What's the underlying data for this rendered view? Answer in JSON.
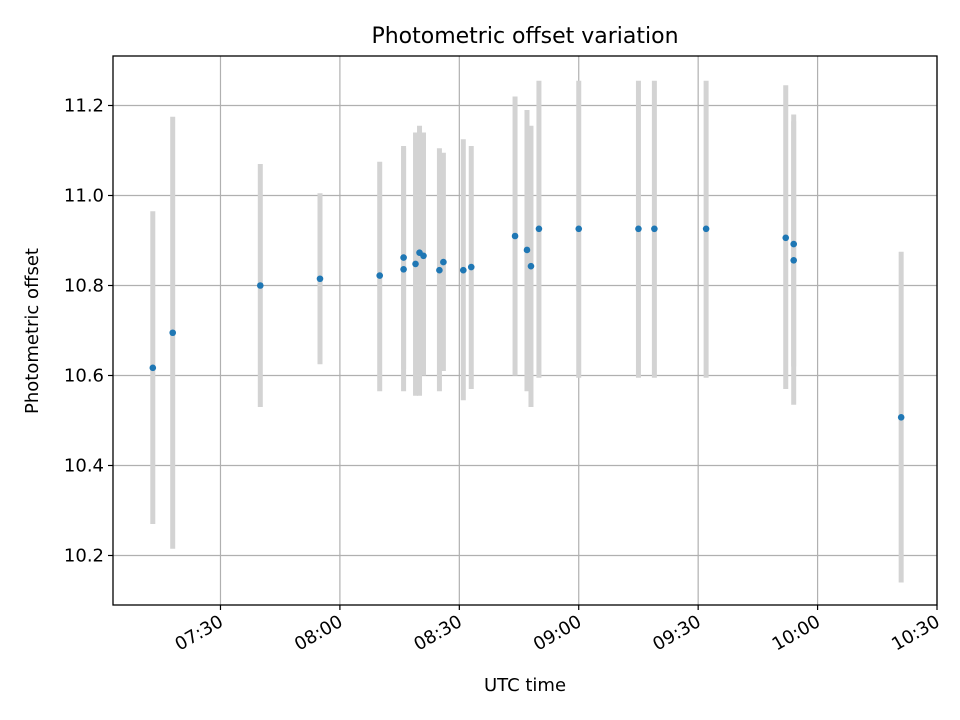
{
  "chart_data": {
    "type": "scatter",
    "title": "Photometric offset variation",
    "xlabel": "UTC time",
    "ylabel": "Photometric offset",
    "x_ticks": [
      "07:30",
      "08:00",
      "08:30",
      "09:00",
      "09:30",
      "10:00",
      "10:30"
    ],
    "y_ticks": [
      "10.2",
      "10.4",
      "10.6",
      "10.8",
      "11.0",
      "11.2"
    ],
    "xlim": [
      "07:03",
      "10:30"
    ],
    "ylim": [
      10.09,
      11.31
    ],
    "grid": true,
    "colors": {
      "points": "#1f77b4",
      "errorbars": "#d3d3d3",
      "grid": "#b0b0b0"
    },
    "points": [
      {
        "x": "07:13",
        "y": 10.617,
        "ylow": 10.27,
        "yhigh": 10.965
      },
      {
        "x": "07:18",
        "y": 10.695,
        "ylow": 10.215,
        "yhigh": 11.175
      },
      {
        "x": "07:40",
        "y": 10.8,
        "ylow": 10.53,
        "yhigh": 11.07
      },
      {
        "x": "07:55",
        "y": 10.815,
        "ylow": 10.625,
        "yhigh": 11.005
      },
      {
        "x": "08:10",
        "y": 10.822,
        "ylow": 10.565,
        "yhigh": 11.075
      },
      {
        "x": "08:16",
        "y": 10.836,
        "ylow": 10.565,
        "yhigh": 11.105
      },
      {
        "x": "08:16",
        "y": 10.862,
        "ylow": 10.615,
        "yhigh": 11.11
      },
      {
        "x": "08:19",
        "y": 10.848,
        "ylow": 10.555,
        "yhigh": 11.14
      },
      {
        "x": "08:20",
        "y": 10.873,
        "ylow": 10.555,
        "yhigh": 11.155
      },
      {
        "x": "08:21",
        "y": 10.866,
        "ylow": 10.6,
        "yhigh": 11.14
      },
      {
        "x": "08:25",
        "y": 10.834,
        "ylow": 10.565,
        "yhigh": 11.105
      },
      {
        "x": "08:26",
        "y": 10.852,
        "ylow": 10.61,
        "yhigh": 11.095
      },
      {
        "x": "08:31",
        "y": 10.834,
        "ylow": 10.545,
        "yhigh": 11.125
      },
      {
        "x": "08:33",
        "y": 10.841,
        "ylow": 10.57,
        "yhigh": 11.11
      },
      {
        "x": "08:44",
        "y": 10.91,
        "ylow": 10.6,
        "yhigh": 11.22
      },
      {
        "x": "08:47",
        "y": 10.879,
        "ylow": 10.565,
        "yhigh": 11.19
      },
      {
        "x": "08:48",
        "y": 10.843,
        "ylow": 10.53,
        "yhigh": 11.155
      },
      {
        "x": "08:50",
        "y": 10.926,
        "ylow": 10.595,
        "yhigh": 11.255
      },
      {
        "x": "09:00",
        "y": 10.926,
        "ylow": 10.595,
        "yhigh": 11.255
      },
      {
        "x": "09:15",
        "y": 10.926,
        "ylow": 10.595,
        "yhigh": 11.255
      },
      {
        "x": "09:19",
        "y": 10.926,
        "ylow": 10.595,
        "yhigh": 11.255
      },
      {
        "x": "09:32",
        "y": 10.926,
        "ylow": 10.595,
        "yhigh": 11.255
      },
      {
        "x": "09:52",
        "y": 10.906,
        "ylow": 10.57,
        "yhigh": 11.245
      },
      {
        "x": "09:54",
        "y": 10.856,
        "ylow": 10.535,
        "yhigh": 11.18
      },
      {
        "x": "09:54",
        "y": 10.892,
        "ylow": 10.62,
        "yhigh": 11.165
      },
      {
        "x": "10:21",
        "y": 10.507,
        "ylow": 10.14,
        "yhigh": 10.875
      }
    ]
  }
}
